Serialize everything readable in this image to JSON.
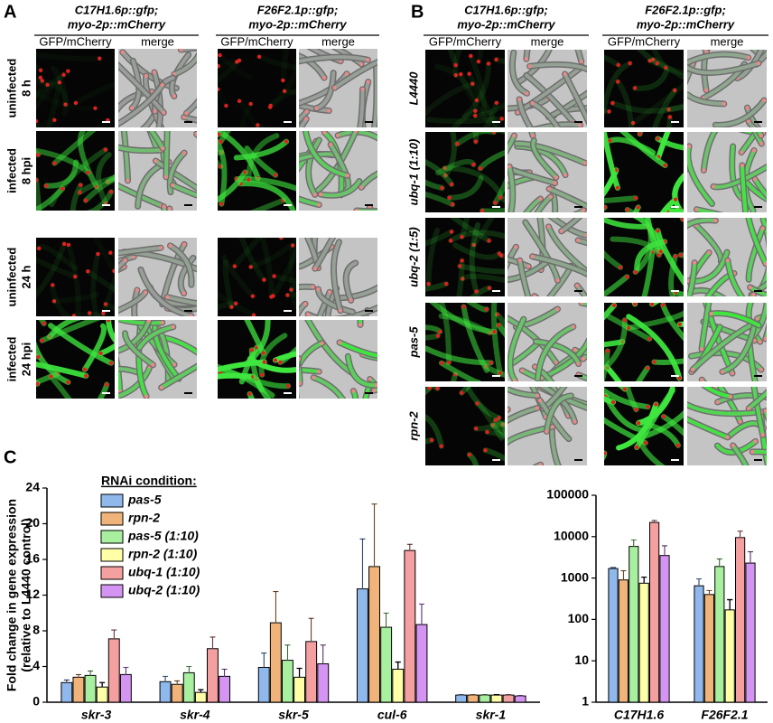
{
  "panel_a": {
    "label": "A",
    "groups": [
      {
        "line1": "C17H1.6p::gfp;",
        "line2": "myo-2p::mCherry",
        "sub": [
          "GFP/mCherry",
          "merge"
        ]
      },
      {
        "line1": "F26F2.1p::gfp;",
        "line2": "myo-2p::mCherry",
        "sub": [
          "GFP/mCherry",
          "merge"
        ]
      }
    ],
    "rows": [
      [
        "uninfected",
        "8 h"
      ],
      [
        "infected",
        "8 hpi"
      ],
      [
        "uninfected",
        "24 h"
      ],
      [
        "infected",
        "24 hpi"
      ]
    ]
  },
  "panel_b": {
    "label": "B",
    "groups": [
      {
        "line1": "C17H1.6p::gfp;",
        "line2": "myo-2p::mCherry",
        "sub": [
          "GFP/mCherry",
          "merge"
        ]
      },
      {
        "line1": "F26F2.1p::gfp;",
        "line2": "myo-2p::mCherry",
        "sub": [
          "GFP/mCherry",
          "merge"
        ]
      }
    ],
    "rows": [
      "L4440",
      "ubq-1 (1:10)",
      "ubq-2 (1:5)",
      "pas-5",
      "rpn-2"
    ]
  },
  "panel_c": {
    "label": "C"
  },
  "chart_data": [
    {
      "type": "bar",
      "ylabel": [
        "Fold change in gene expression",
        "(relative to L4440 control)"
      ],
      "legend_title": "RNAi condition:",
      "categories": [
        "skr-3",
        "skr-4",
        "skr-5",
        "cul-6",
        "skr-1"
      ],
      "ylim": [
        0,
        24
      ],
      "yticks": [
        0,
        4,
        8,
        12,
        16,
        20,
        24
      ],
      "series": [
        {
          "name": "pas-5",
          "color": "#8fb8ec",
          "values": [
            2.2,
            2.3,
            3.9,
            12.7,
            0.8
          ],
          "errors": [
            0.3,
            0.6,
            1.6,
            5.6,
            0.05
          ]
        },
        {
          "name": "rpn-2",
          "color": "#f0b47a",
          "values": [
            2.8,
            2.0,
            8.9,
            15.2,
            0.8
          ],
          "errors": [
            0.3,
            0.4,
            3.5,
            7.0,
            0.05
          ]
        },
        {
          "name": "pas-5 (1:10)",
          "color": "#a8f0a0",
          "values": [
            3.0,
            3.3,
            4.7,
            8.4,
            0.8
          ],
          "errors": [
            0.5,
            0.7,
            1.7,
            1.6,
            0.05
          ]
        },
        {
          "name": "rpn-2 (1:10)",
          "color": "#ffffa8",
          "values": [
            1.7,
            1.1,
            2.8,
            3.7,
            0.8
          ],
          "errors": [
            0.5,
            0.3,
            1.0,
            0.8,
            0.05
          ]
        },
        {
          "name": "ubq-1 (1:10)",
          "color": "#f5a0a0",
          "values": [
            7.1,
            6.0,
            6.8,
            17.0,
            0.8
          ],
          "errors": [
            1.0,
            1.3,
            2.6,
            0.7,
            0.05
          ]
        },
        {
          "name": "ubq-2 (1:10)",
          "color": "#d494f2",
          "values": [
            3.1,
            2.9,
            4.3,
            8.7,
            0.7
          ],
          "errors": [
            0.8,
            0.8,
            2.1,
            2.3,
            0.05
          ]
        }
      ]
    },
    {
      "type": "bar",
      "log_scale": true,
      "categories": [
        "C17H1.6",
        "F26F2.1"
      ],
      "ylim": [
        1,
        100000
      ],
      "yticks": [
        1,
        10,
        100,
        1000,
        10000,
        100000
      ],
      "series": [
        {
          "color": "#8fb8ec",
          "values": [
            1700,
            650
          ],
          "errors": [
            100,
            300
          ]
        },
        {
          "color": "#f0b47a",
          "values": [
            900,
            400
          ],
          "errors": [
            600,
            100
          ]
        },
        {
          "color": "#a8f0a0",
          "values": [
            5800,
            1900
          ],
          "errors": [
            2500,
            1000
          ]
        },
        {
          "color": "#ffffa8",
          "values": [
            750,
            170
          ],
          "errors": [
            300,
            130
          ]
        },
        {
          "color": "#f5a0a0",
          "values": [
            22000,
            9500
          ],
          "errors": [
            2500,
            4000
          ]
        },
        {
          "color": "#d494f2",
          "values": [
            3500,
            2300
          ],
          "errors": [
            2500,
            2000
          ]
        }
      ]
    }
  ]
}
